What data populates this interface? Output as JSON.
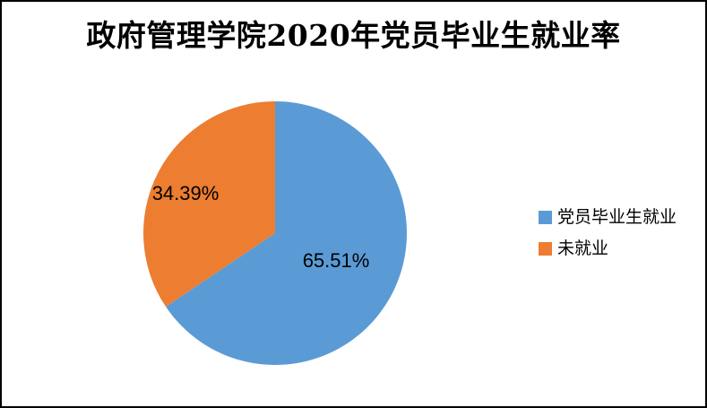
{
  "frame": {
    "background": "#FFFFFF",
    "border_color": "#000000"
  },
  "chart_data": {
    "type": "pie",
    "title": "政府管理学院2020年党员毕业生就业率",
    "legend_position": "right",
    "start_angle": "top",
    "direction": "clockwise",
    "title_color": "#000000",
    "data_label_color": "#000000",
    "slices": [
      {
        "label": "党员毕业生就业",
        "value": 65.51,
        "display": "65.51%",
        "color": "#5B9BD5"
      },
      {
        "label": "未就业",
        "value": 34.39,
        "display": "34.39%",
        "color": "#ED7D31"
      }
    ]
  }
}
